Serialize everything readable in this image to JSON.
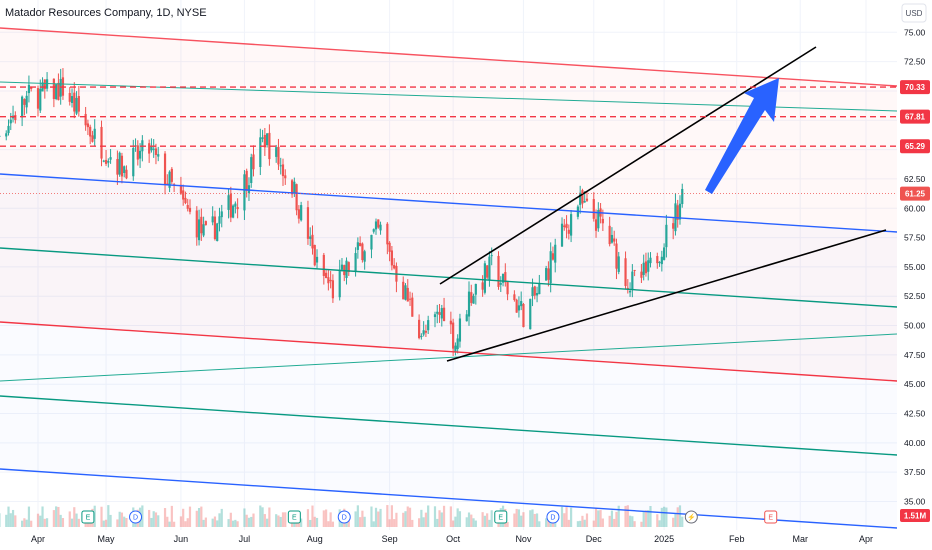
{
  "header": {
    "symbol_title": "Matador Resources Company, 1D, NYSE",
    "currency": "USD"
  },
  "chart_data": {
    "type": "candlestick",
    "title": "Matador Resources Company, 1D, NYSE",
    "ylim": [
      34.0,
      76.5
    ],
    "y_ticks": [
      35.0,
      37.5,
      40.0,
      42.5,
      45.0,
      47.5,
      50.0,
      52.5,
      55.0,
      57.5,
      60.0,
      62.5,
      65.0,
      67.5,
      70.0,
      72.5,
      75.0
    ],
    "y_tick_labels": [
      "35.00",
      "37.50",
      "40.00",
      "42.50",
      "45.00",
      "47.50",
      "50.00",
      "52.50",
      "55.00",
      "57.50",
      "60.00",
      "62.50",
      "65.00",
      "67.50",
      "70.00",
      "72.50",
      "75.00"
    ],
    "x_labels": [
      "Apr",
      "May",
      "Jun",
      "Jul",
      "Aug",
      "Sep",
      "Oct",
      "Nov",
      "Dec",
      "2025",
      "Feb",
      "Mar",
      "Apr"
    ],
    "x_label_dates": [
      "2024-04-01",
      "2024-05-01",
      "2024-06-03",
      "2024-07-01",
      "2024-08-01",
      "2024-09-03",
      "2024-10-01",
      "2024-11-01",
      "2024-12-02",
      "2025-01-02",
      "2025-02-03",
      "2025-03-03",
      "2025-04-01"
    ],
    "price_path": [
      {
        "date": "2024-03-01",
        "close": 62.5
      },
      {
        "date": "2024-03-15",
        "close": 66.5
      },
      {
        "date": "2024-03-28",
        "close": 69.5
      },
      {
        "date": "2024-04-12",
        "close": 70.2
      },
      {
        "date": "2024-04-26",
        "close": 66.0
      },
      {
        "date": "2024-05-08",
        "close": 63.5
      },
      {
        "date": "2024-05-20",
        "close": 65.0
      },
      {
        "date": "2024-06-03",
        "close": 60.5
      },
      {
        "date": "2024-06-14",
        "close": 57.5
      },
      {
        "date": "2024-06-28",
        "close": 61.0
      },
      {
        "date": "2024-07-10",
        "close": 66.0
      },
      {
        "date": "2024-07-22",
        "close": 62.0
      },
      {
        "date": "2024-08-02",
        "close": 55.0
      },
      {
        "date": "2024-08-09",
        "close": 53.0
      },
      {
        "date": "2024-08-23",
        "close": 57.0
      },
      {
        "date": "2024-08-30",
        "close": 58.0
      },
      {
        "date": "2024-09-06",
        "close": 54.5
      },
      {
        "date": "2024-09-18",
        "close": 49.0
      },
      {
        "date": "2024-09-27",
        "close": 51.5
      },
      {
        "date": "2024-10-02",
        "close": 48.5
      },
      {
        "date": "2024-10-08",
        "close": 52.5
      },
      {
        "date": "2024-10-18",
        "close": 55.0
      },
      {
        "date": "2024-11-01",
        "close": 51.0
      },
      {
        "date": "2024-11-08",
        "close": 53.0
      },
      {
        "date": "2024-11-15",
        "close": 56.5
      },
      {
        "date": "2024-11-25",
        "close": 60.5
      },
      {
        "date": "2024-12-06",
        "close": 58.5
      },
      {
        "date": "2024-12-18",
        "close": 53.5
      },
      {
        "date": "2024-12-26",
        "close": 54.5
      },
      {
        "date": "2025-01-06",
        "close": 59.0
      },
      {
        "date": "2025-01-10",
        "close": 61.25
      }
    ],
    "series": [
      {
        "name": "",
        "type": "horizontal_level",
        "values": [
          70.33,
          67.81,
          65.29
        ]
      }
    ],
    "price_levels": [
      {
        "value": 70.33,
        "label": "70.33",
        "color": "#f23645"
      },
      {
        "value": 67.81,
        "label": "67.81",
        "color": "#f23645"
      },
      {
        "value": 65.29,
        "label": "65.29",
        "color": "#f23645"
      }
    ],
    "last_price": {
      "value": 61.25,
      "label": "61.25",
      "color": "#ef5350"
    },
    "volume_label": "1.51M",
    "volume_color": "#f23645",
    "event_markers": [
      {
        "date": "2024-04-23",
        "label": "E",
        "kind": "earnings"
      },
      {
        "date": "2024-05-14",
        "label": "D",
        "kind": "dividend"
      },
      {
        "date": "2024-07-23",
        "label": "E",
        "kind": "earnings"
      },
      {
        "date": "2024-08-14",
        "label": "D",
        "kind": "dividend"
      },
      {
        "date": "2024-10-22",
        "label": "E",
        "kind": "earnings"
      },
      {
        "date": "2024-11-14",
        "label": "D",
        "kind": "dividend"
      },
      {
        "date": "2025-01-14",
        "label": "⚡",
        "kind": "split"
      },
      {
        "date": "2025-02-18",
        "label": "E",
        "kind": "earnings-upcoming"
      }
    ],
    "colors": {
      "up": "#26a69a",
      "down": "#ef5350",
      "grid": "#f0f3fa",
      "red_channel": "#f23645",
      "blue_channel": "#2962ff",
      "green_channel": "#089981",
      "teal_line": "#22ab94",
      "pink_line": "#f7525f",
      "black_wedge": "#000000",
      "arrow": "#2962ff"
    },
    "grid": true,
    "legend": "none"
  }
}
